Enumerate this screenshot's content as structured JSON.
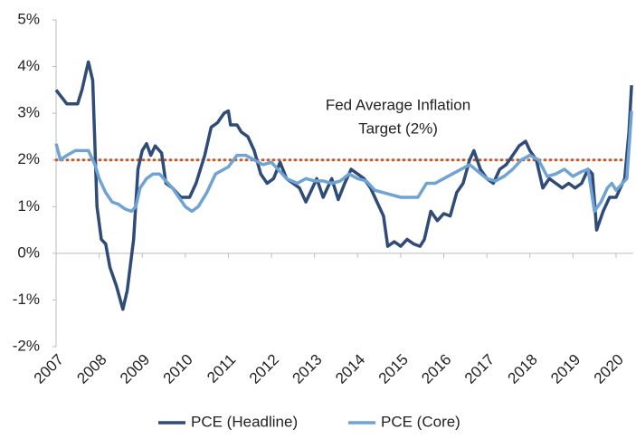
{
  "chart_data": {
    "type": "line",
    "annotation": [
      "Fed Average Inflation",
      "Target (2%)"
    ],
    "reference_line": {
      "value": 2,
      "color": "#c55a2b"
    },
    "xlim": [
      2007,
      2020.4
    ],
    "xticks": [
      2007,
      2008,
      2009,
      2010,
      2011,
      2012,
      2013,
      2014,
      2015,
      2016,
      2017,
      2018,
      2019,
      2020
    ],
    "ylim": [
      -2,
      5
    ],
    "yticks": [
      {
        "value": -2,
        "label": "-2%"
      },
      {
        "value": -1,
        "label": "-1%"
      },
      {
        "value": 0,
        "label": "0%"
      },
      {
        "value": 1,
        "label": "1%"
      },
      {
        "value": 2,
        "label": "2%"
      },
      {
        "value": 3,
        "label": "3%"
      },
      {
        "value": 4,
        "label": "4%"
      },
      {
        "value": 5,
        "label": "5%"
      }
    ],
    "series": [
      {
        "name": "PCE (Headline)",
        "color": "#2f4b78",
        "x": [
          2007.0,
          2007.25,
          2007.5,
          2007.6,
          2007.75,
          2007.85,
          2007.95,
          2008.05,
          2008.15,
          2008.25,
          2008.4,
          2008.55,
          2008.65,
          2008.8,
          2008.9,
          2009.0,
          2009.1,
          2009.2,
          2009.3,
          2009.45,
          2009.55,
          2009.7,
          2009.9,
          2010.1,
          2010.25,
          2010.45,
          2010.6,
          2010.75,
          2010.9,
          2011.0,
          2011.05,
          2011.2,
          2011.3,
          2011.45,
          2011.6,
          2011.75,
          2011.9,
          2012.05,
          2012.2,
          2012.35,
          2012.5,
          2012.65,
          2012.8,
          2012.95,
          2013.05,
          2013.2,
          2013.4,
          2013.55,
          2013.7,
          2013.85,
          2014.0,
          2014.15,
          2014.3,
          2014.45,
          2014.6,
          2014.7,
          2014.85,
          2015.0,
          2015.15,
          2015.3,
          2015.45,
          2015.55,
          2015.7,
          2015.85,
          2016.0,
          2016.15,
          2016.3,
          2016.45,
          2016.6,
          2016.7,
          2016.85,
          2017.0,
          2017.15,
          2017.3,
          2017.45,
          2017.6,
          2017.75,
          2017.9,
          2018.0,
          2018.15,
          2018.3,
          2018.45,
          2018.6,
          2018.75,
          2018.9,
          2019.05,
          2019.2,
          2019.35,
          2019.45,
          2019.55,
          2019.7,
          2019.85,
          2020.0,
          2020.1,
          2020.2,
          2020.3,
          2020.36
        ],
        "values": [
          3.5,
          3.2,
          3.2,
          3.5,
          4.1,
          3.7,
          1.0,
          0.3,
          0.2,
          -0.3,
          -0.7,
          -1.2,
          -0.8,
          0.3,
          1.8,
          2.2,
          2.35,
          2.1,
          2.3,
          2.15,
          1.5,
          1.4,
          1.2,
          1.2,
          1.5,
          2.1,
          2.7,
          2.8,
          3.0,
          3.05,
          2.75,
          2.75,
          2.6,
          2.5,
          2.2,
          1.7,
          1.5,
          1.6,
          1.95,
          1.6,
          1.5,
          1.4,
          1.1,
          1.4,
          1.6,
          1.2,
          1.6,
          1.15,
          1.5,
          1.8,
          1.7,
          1.6,
          1.4,
          1.1,
          0.8,
          0.15,
          0.25,
          0.15,
          0.3,
          0.2,
          0.15,
          0.3,
          0.9,
          0.7,
          0.85,
          0.8,
          1.3,
          1.5,
          2.0,
          2.2,
          1.8,
          1.6,
          1.5,
          1.8,
          1.9,
          2.1,
          2.3,
          2.4,
          2.2,
          2.0,
          1.4,
          1.6,
          1.5,
          1.4,
          1.5,
          1.4,
          1.5,
          1.8,
          1.7,
          0.5,
          0.9,
          1.2,
          1.2,
          1.4,
          1.6,
          2.6,
          3.6
        ]
      },
      {
        "name": "PCE (Core)",
        "color": "#6fa3d4",
        "x": [
          2007.0,
          2007.1,
          2007.25,
          2007.45,
          2007.6,
          2007.75,
          2007.9,
          2008.0,
          2008.15,
          2008.3,
          2008.45,
          2008.6,
          2008.75,
          2008.85,
          2008.95,
          2009.1,
          2009.25,
          2009.4,
          2009.55,
          2009.7,
          2009.85,
          2010.0,
          2010.15,
          2010.3,
          2010.5,
          2010.7,
          2010.9,
          2011.0,
          2011.2,
          2011.4,
          2011.6,
          2011.8,
          2012.0,
          2012.15,
          2012.35,
          2012.6,
          2012.8,
          2013.0,
          2013.2,
          2013.4,
          2013.6,
          2013.8,
          2014.0,
          2014.2,
          2014.4,
          2014.6,
          2014.8,
          2015.0,
          2015.2,
          2015.4,
          2015.6,
          2015.8,
          2016.0,
          2016.2,
          2016.4,
          2016.6,
          2016.8,
          2017.0,
          2017.2,
          2017.4,
          2017.6,
          2017.8,
          2018.0,
          2018.2,
          2018.4,
          2018.6,
          2018.8,
          2019.0,
          2019.2,
          2019.35,
          2019.5,
          2019.65,
          2019.8,
          2019.9,
          2020.0,
          2020.15,
          2020.25,
          2020.36
        ],
        "values": [
          2.35,
          2.0,
          2.1,
          2.2,
          2.2,
          2.2,
          1.9,
          1.6,
          1.3,
          1.1,
          1.05,
          0.95,
          0.9,
          1.0,
          1.4,
          1.6,
          1.7,
          1.7,
          1.55,
          1.4,
          1.2,
          1.0,
          0.9,
          1.0,
          1.3,
          1.7,
          1.8,
          1.85,
          2.1,
          2.1,
          2.0,
          1.9,
          1.95,
          1.8,
          1.6,
          1.5,
          1.6,
          1.55,
          1.55,
          1.5,
          1.55,
          1.7,
          1.6,
          1.55,
          1.35,
          1.3,
          1.25,
          1.2,
          1.2,
          1.2,
          1.5,
          1.5,
          1.6,
          1.7,
          1.8,
          1.9,
          1.75,
          1.6,
          1.55,
          1.65,
          1.8,
          2.0,
          2.1,
          2.0,
          1.65,
          1.7,
          1.8,
          1.65,
          1.75,
          1.8,
          0.9,
          1.1,
          1.4,
          1.5,
          1.35,
          1.5,
          1.6,
          3.05
        ]
      }
    ]
  }
}
